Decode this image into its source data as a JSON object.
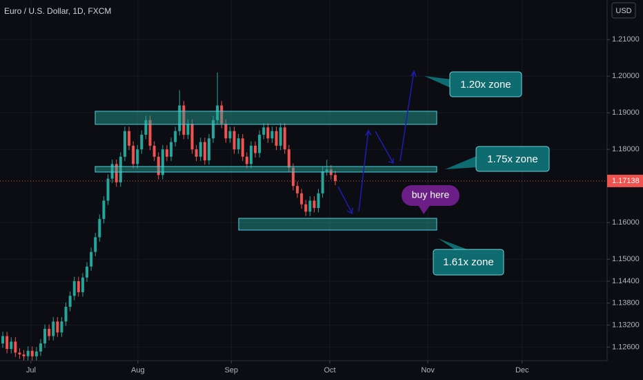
{
  "header": {
    "title": "Euro / U.S. Dollar, 1D, FXCM",
    "currency": "USD"
  },
  "annotations": {
    "top_zone": "1.20x zone",
    "mid_zone": "1.75x zone",
    "buy": "buy here",
    "low_zone": "1.61x zone"
  },
  "chart_data": {
    "type": "candlestick",
    "colors": {
      "up": "#26a69a",
      "down": "#ef5350"
    },
    "last_price": 1.17138,
    "xlim": [
      -0.66,
      143.6
    ],
    "xticks": [
      {
        "value": 6.7,
        "label": "Jul"
      },
      {
        "value": 32.1,
        "label": "Aug"
      },
      {
        "value": 54.3,
        "label": "Sep"
      },
      {
        "value": 77.7,
        "label": "Oct"
      },
      {
        "value": 101,
        "label": "Nov"
      },
      {
        "value": 123.4,
        "label": "Dec"
      }
    ],
    "ylim": [
      1.1223,
      1.2208
    ],
    "yticks": [
      {
        "value": 1.126,
        "label": "1.12600"
      },
      {
        "value": 1.132,
        "label": "1.13200"
      },
      {
        "value": 1.138,
        "label": "1.13800"
      },
      {
        "value": 1.144,
        "label": "1.14400"
      },
      {
        "value": 1.15,
        "label": "1.15000"
      },
      {
        "value": 1.16,
        "label": "1.16000"
      },
      {
        "value": 1.18,
        "label": "1.18000"
      },
      {
        "value": 1.19,
        "label": "1.19000"
      },
      {
        "value": 1.2,
        "label": "1.20000"
      },
      {
        "value": 1.21,
        "label": "1.21000"
      }
    ],
    "ohlc": [
      [
        1.127,
        1.1302,
        1.1258,
        1.129
      ],
      [
        1.129,
        1.1302,
        1.1243,
        1.1255
      ],
      [
        1.1255,
        1.1287,
        1.1243,
        1.1275
      ],
      [
        1.1275,
        1.1287,
        1.1233,
        1.1245
      ],
      [
        1.1245,
        1.1257,
        1.1228,
        1.124
      ],
      [
        1.124,
        1.1252,
        1.1223,
        1.1235
      ],
      [
        1.1235,
        1.1262,
        1.1223,
        1.125
      ],
      [
        1.125,
        1.1262,
        1.1223,
        1.1235
      ],
      [
        1.1235,
        1.126,
        1.1223,
        1.1248
      ],
      [
        1.1248,
        1.1282,
        1.1236,
        1.127
      ],
      [
        1.127,
        1.1322,
        1.1258,
        1.131
      ],
      [
        1.131,
        1.1322,
        1.1278,
        1.129
      ],
      [
        1.129,
        1.1342,
        1.1278,
        1.133
      ],
      [
        1.133,
        1.1342,
        1.1288,
        1.13
      ],
      [
        1.13,
        1.1342,
        1.1288,
        1.133
      ],
      [
        1.133,
        1.1382,
        1.1318,
        1.137
      ],
      [
        1.137,
        1.1412,
        1.1358,
        1.14
      ],
      [
        1.14,
        1.1452,
        1.1388,
        1.144
      ],
      [
        1.144,
        1.1452,
        1.1398,
        1.141
      ],
      [
        1.141,
        1.1462,
        1.1398,
        1.145
      ],
      [
        1.145,
        1.1492,
        1.1438,
        1.148
      ],
      [
        1.148,
        1.1532,
        1.1468,
        1.152
      ],
      [
        1.152,
        1.1572,
        1.1508,
        1.156
      ],
      [
        1.156,
        1.1622,
        1.1548,
        1.161
      ],
      [
        1.161,
        1.1672,
        1.1598,
        1.166
      ],
      [
        1.166,
        1.1732,
        1.1648,
        1.172
      ],
      [
        1.172,
        1.1772,
        1.1708,
        1.176
      ],
      [
        1.176,
        1.1772,
        1.1698,
        1.171
      ],
      [
        1.171,
        1.1792,
        1.1698,
        1.178
      ],
      [
        1.178,
        1.1862,
        1.1768,
        1.185
      ],
      [
        1.185,
        1.1862,
        1.1798,
        1.181
      ],
      [
        1.181,
        1.1822,
        1.1748,
        1.176
      ],
      [
        1.176,
        1.1812,
        1.1748,
        1.18
      ],
      [
        1.18,
        1.1852,
        1.1788,
        1.184
      ],
      [
        1.184,
        1.1892,
        1.1828,
        1.188
      ],
      [
        1.188,
        1.1892,
        1.1798,
        1.181
      ],
      [
        1.181,
        1.1822,
        1.1768,
        1.178
      ],
      [
        1.178,
        1.1792,
        1.1718,
        1.173
      ],
      [
        1.173,
        1.1812,
        1.1718,
        1.18
      ],
      [
        1.18,
        1.1812,
        1.1768,
        1.178
      ],
      [
        1.178,
        1.1832,
        1.1768,
        1.182
      ],
      [
        1.182,
        1.1862,
        1.1808,
        1.185
      ],
      [
        1.185,
        1.1962,
        1.1838,
        1.192
      ],
      [
        1.192,
        1.1932,
        1.1828,
        1.184
      ],
      [
        1.184,
        1.1882,
        1.1828,
        1.187
      ],
      [
        1.187,
        1.1882,
        1.1788,
        1.18
      ],
      [
        1.18,
        1.1812,
        1.1768,
        1.178
      ],
      [
        1.178,
        1.1832,
        1.1768,
        1.182
      ],
      [
        1.182,
        1.1832,
        1.1758,
        1.177
      ],
      [
        1.177,
        1.1842,
        1.1758,
        1.183
      ],
      [
        1.183,
        1.1892,
        1.1818,
        1.188
      ],
      [
        1.188,
        1.201,
        1.1868,
        1.192
      ],
      [
        1.192,
        1.1932,
        1.1858,
        1.187
      ],
      [
        1.187,
        1.1882,
        1.1818,
        1.183
      ],
      [
        1.183,
        1.1862,
        1.1818,
        1.185
      ],
      [
        1.185,
        1.1862,
        1.1788,
        1.18
      ],
      [
        1.18,
        1.1842,
        1.1788,
        1.183
      ],
      [
        1.183,
        1.1842,
        1.1768,
        1.178
      ],
      [
        1.178,
        1.1792,
        1.1748,
        1.176
      ],
      [
        1.176,
        1.1822,
        1.1748,
        1.181
      ],
      [
        1.181,
        1.1822,
        1.1778,
        1.179
      ],
      [
        1.179,
        1.1852,
        1.1778,
        1.184
      ],
      [
        1.184,
        1.1872,
        1.1828,
        1.186
      ],
      [
        1.186,
        1.1872,
        1.1818,
        1.183
      ],
      [
        1.183,
        1.1862,
        1.1818,
        1.185
      ],
      [
        1.185,
        1.1862,
        1.1798,
        1.181
      ],
      [
        1.181,
        1.1872,
        1.1798,
        1.186
      ],
      [
        1.186,
        1.1872,
        1.1788,
        1.18
      ],
      [
        1.18,
        1.1812,
        1.1738,
        1.175
      ],
      [
        1.175,
        1.1762,
        1.1688,
        1.17
      ],
      [
        1.17,
        1.1712,
        1.1668,
        1.168
      ],
      [
        1.168,
        1.1692,
        1.1638,
        1.165
      ],
      [
        1.165,
        1.1662,
        1.1618,
        1.163
      ],
      [
        1.163,
        1.1672,
        1.1618,
        1.166
      ],
      [
        1.166,
        1.1672,
        1.1628,
        1.164
      ],
      [
        1.164,
        1.1692,
        1.1628,
        1.168
      ],
      [
        1.168,
        1.1752,
        1.1668,
        1.174
      ],
      [
        1.174,
        1.1772,
        1.1728,
        1.1745
      ],
      [
        1.1745,
        1.1757,
        1.1718,
        1.173
      ],
      [
        1.173,
        1.1742,
        1.1702,
        1.17138
      ]
    ]
  }
}
